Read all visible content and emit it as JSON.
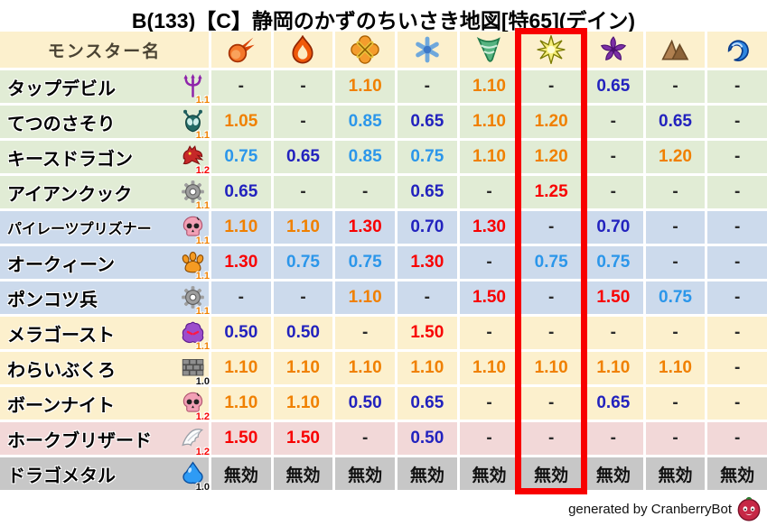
{
  "title": "B(133)【C】静岡のかずのちいさき地図[特65](デイン)",
  "header": {
    "name_column": "モンスター名"
  },
  "elements": [
    "fireball",
    "flame",
    "explosion",
    "snowflake",
    "tornado",
    "starburst",
    "pinwheel",
    "mountain",
    "wave"
  ],
  "highlight": {
    "element_index": 5,
    "color": "#F80000"
  },
  "rows": [
    {
      "name": "タップデビル",
      "icon": "trident",
      "badge": "1.1",
      "bg": "green",
      "values": [
        "-",
        "-",
        "1.10",
        "-",
        "1.10",
        "-",
        "0.65",
        "-",
        "-"
      ]
    },
    {
      "name": "てつのさそり",
      "icon": "scorpion",
      "badge": "1.1",
      "bg": "green",
      "values": [
        "1.05",
        "-",
        "0.85",
        "0.65",
        "1.10",
        "1.20",
        "-",
        "0.65",
        "-"
      ]
    },
    {
      "name": "キースドラゴン",
      "icon": "dragon",
      "badge": "1.2",
      "bg": "green",
      "values": [
        "0.75",
        "0.65",
        "0.85",
        "0.75",
        "1.10",
        "1.20",
        "-",
        "1.20",
        "-"
      ]
    },
    {
      "name": "アイアンクック",
      "icon": "gear",
      "badge": "1.1",
      "bg": "green",
      "values": [
        "0.65",
        "-",
        "-",
        "0.65",
        "-",
        "1.25",
        "-",
        "-",
        "-"
      ]
    },
    {
      "name": "パイレーツプリズナー",
      "icon": "skull",
      "badge": "1.1",
      "bg": "blue",
      "values": [
        "1.10",
        "1.10",
        "1.30",
        "0.70",
        "1.30",
        "-",
        "0.70",
        "-",
        "-"
      ]
    },
    {
      "name": "オークィーン",
      "icon": "paw",
      "badge": "1.1",
      "bg": "blue",
      "values": [
        "1.30",
        "0.75",
        "0.75",
        "1.30",
        "-",
        "0.75",
        "0.75",
        "-",
        "-"
      ]
    },
    {
      "name": "ポンコツ兵",
      "icon": "gear",
      "badge": "1.1",
      "bg": "blue",
      "values": [
        "-",
        "-",
        "1.10",
        "-",
        "1.50",
        "-",
        "1.50",
        "0.75",
        "-"
      ]
    },
    {
      "name": "メラゴースト",
      "icon": "ghost",
      "badge": "1.1",
      "bg": "cream",
      "values": [
        "0.50",
        "0.50",
        "-",
        "1.50",
        "-",
        "-",
        "-",
        "-",
        "-"
      ]
    },
    {
      "name": "わらいぶくろ",
      "icon": "brick",
      "badge": "1.0",
      "bg": "cream",
      "values": [
        "1.10",
        "1.10",
        "1.10",
        "1.10",
        "1.10",
        "1.10",
        "1.10",
        "1.10",
        "-"
      ]
    },
    {
      "name": "ボーンナイト",
      "icon": "skull",
      "badge": "1.2",
      "bg": "cream",
      "values": [
        "1.10",
        "1.10",
        "0.50",
        "0.65",
        "-",
        "-",
        "0.65",
        "-",
        "-"
      ]
    },
    {
      "name": "ホークブリザード",
      "icon": "wing",
      "badge": "1.2",
      "bg": "pink",
      "values": [
        "1.50",
        "1.50",
        "-",
        "0.50",
        "-",
        "-",
        "-",
        "-",
        "-"
      ]
    },
    {
      "name": "ドラゴメタル",
      "icon": "slime",
      "badge": "1.0",
      "bg": "gray",
      "values": [
        "無効",
        "無効",
        "無効",
        "無効",
        "無効",
        "無効",
        "無効",
        "無効",
        "無効"
      ]
    }
  ],
  "footer": {
    "credit": "generated by CranberryBot"
  },
  "palette": {
    "orange": "#F08000",
    "red": "#F80000",
    "light_blue": "#2B96EA",
    "dark_blue": "#2222BE",
    "dash": "#2B2B2B",
    "immune_text": "#111111",
    "row_green": "#E1ECD5",
    "row_blue": "#CCDAEC",
    "row_cream": "#FCF0CD",
    "row_pink": "#F2D8D8",
    "row_gray": "#C7C7C7",
    "header_bg": "#FCF0CD",
    "badge_orange": "#F08000",
    "badge_red": "#F80000",
    "badge_black": "#111111"
  },
  "chart_data": {
    "type": "table",
    "title": "B(133)【C】静岡のかずのちいさき地図[特65](デイン)",
    "columns": [
      "モンスター名",
      "fireball",
      "flame",
      "explosion",
      "snowflake",
      "tornado",
      "starburst",
      "pinwheel",
      "mountain",
      "wave"
    ],
    "highlighted_column": "starburst",
    "rows": [
      [
        "タップデビル",
        "-",
        "-",
        "1.10",
        "-",
        "1.10",
        "-",
        "0.65",
        "-",
        "-"
      ],
      [
        "てつのさそり",
        "1.05",
        "-",
        "0.85",
        "0.65",
        "1.10",
        "1.20",
        "-",
        "0.65",
        "-"
      ],
      [
        "キースドラゴン",
        "0.75",
        "0.65",
        "0.85",
        "0.75",
        "1.10",
        "1.20",
        "-",
        "1.20",
        "-"
      ],
      [
        "アイアンクック",
        "0.65",
        "-",
        "-",
        "0.65",
        "-",
        "1.25",
        "-",
        "-",
        "-"
      ],
      [
        "パイレーツプリズナー",
        "1.10",
        "1.10",
        "1.30",
        "0.70",
        "1.30",
        "-",
        "0.70",
        "-",
        "-"
      ],
      [
        "オークィーン",
        "1.30",
        "0.75",
        "0.75",
        "1.30",
        "-",
        "0.75",
        "0.75",
        "-",
        "-"
      ],
      [
        "ポンコツ兵",
        "-",
        "-",
        "1.10",
        "-",
        "1.50",
        "-",
        "1.50",
        "0.75",
        "-"
      ],
      [
        "メラゴースト",
        "0.50",
        "0.50",
        "-",
        "1.50",
        "-",
        "-",
        "-",
        "-",
        "-"
      ],
      [
        "わらいぶくろ",
        "1.10",
        "1.10",
        "1.10",
        "1.10",
        "1.10",
        "1.10",
        "1.10",
        "1.10",
        "-"
      ],
      [
        "ボーンナイト",
        "1.10",
        "1.10",
        "0.50",
        "0.65",
        "-",
        "-",
        "0.65",
        "-",
        "-"
      ],
      [
        "ホークブリザード",
        "1.50",
        "1.50",
        "-",
        "0.50",
        "-",
        "-",
        "-",
        "-",
        "-"
      ],
      [
        "ドラゴメタル",
        "無効",
        "無効",
        "無効",
        "無効",
        "無効",
        "無効",
        "無効",
        "無効",
        "無効"
      ]
    ]
  }
}
